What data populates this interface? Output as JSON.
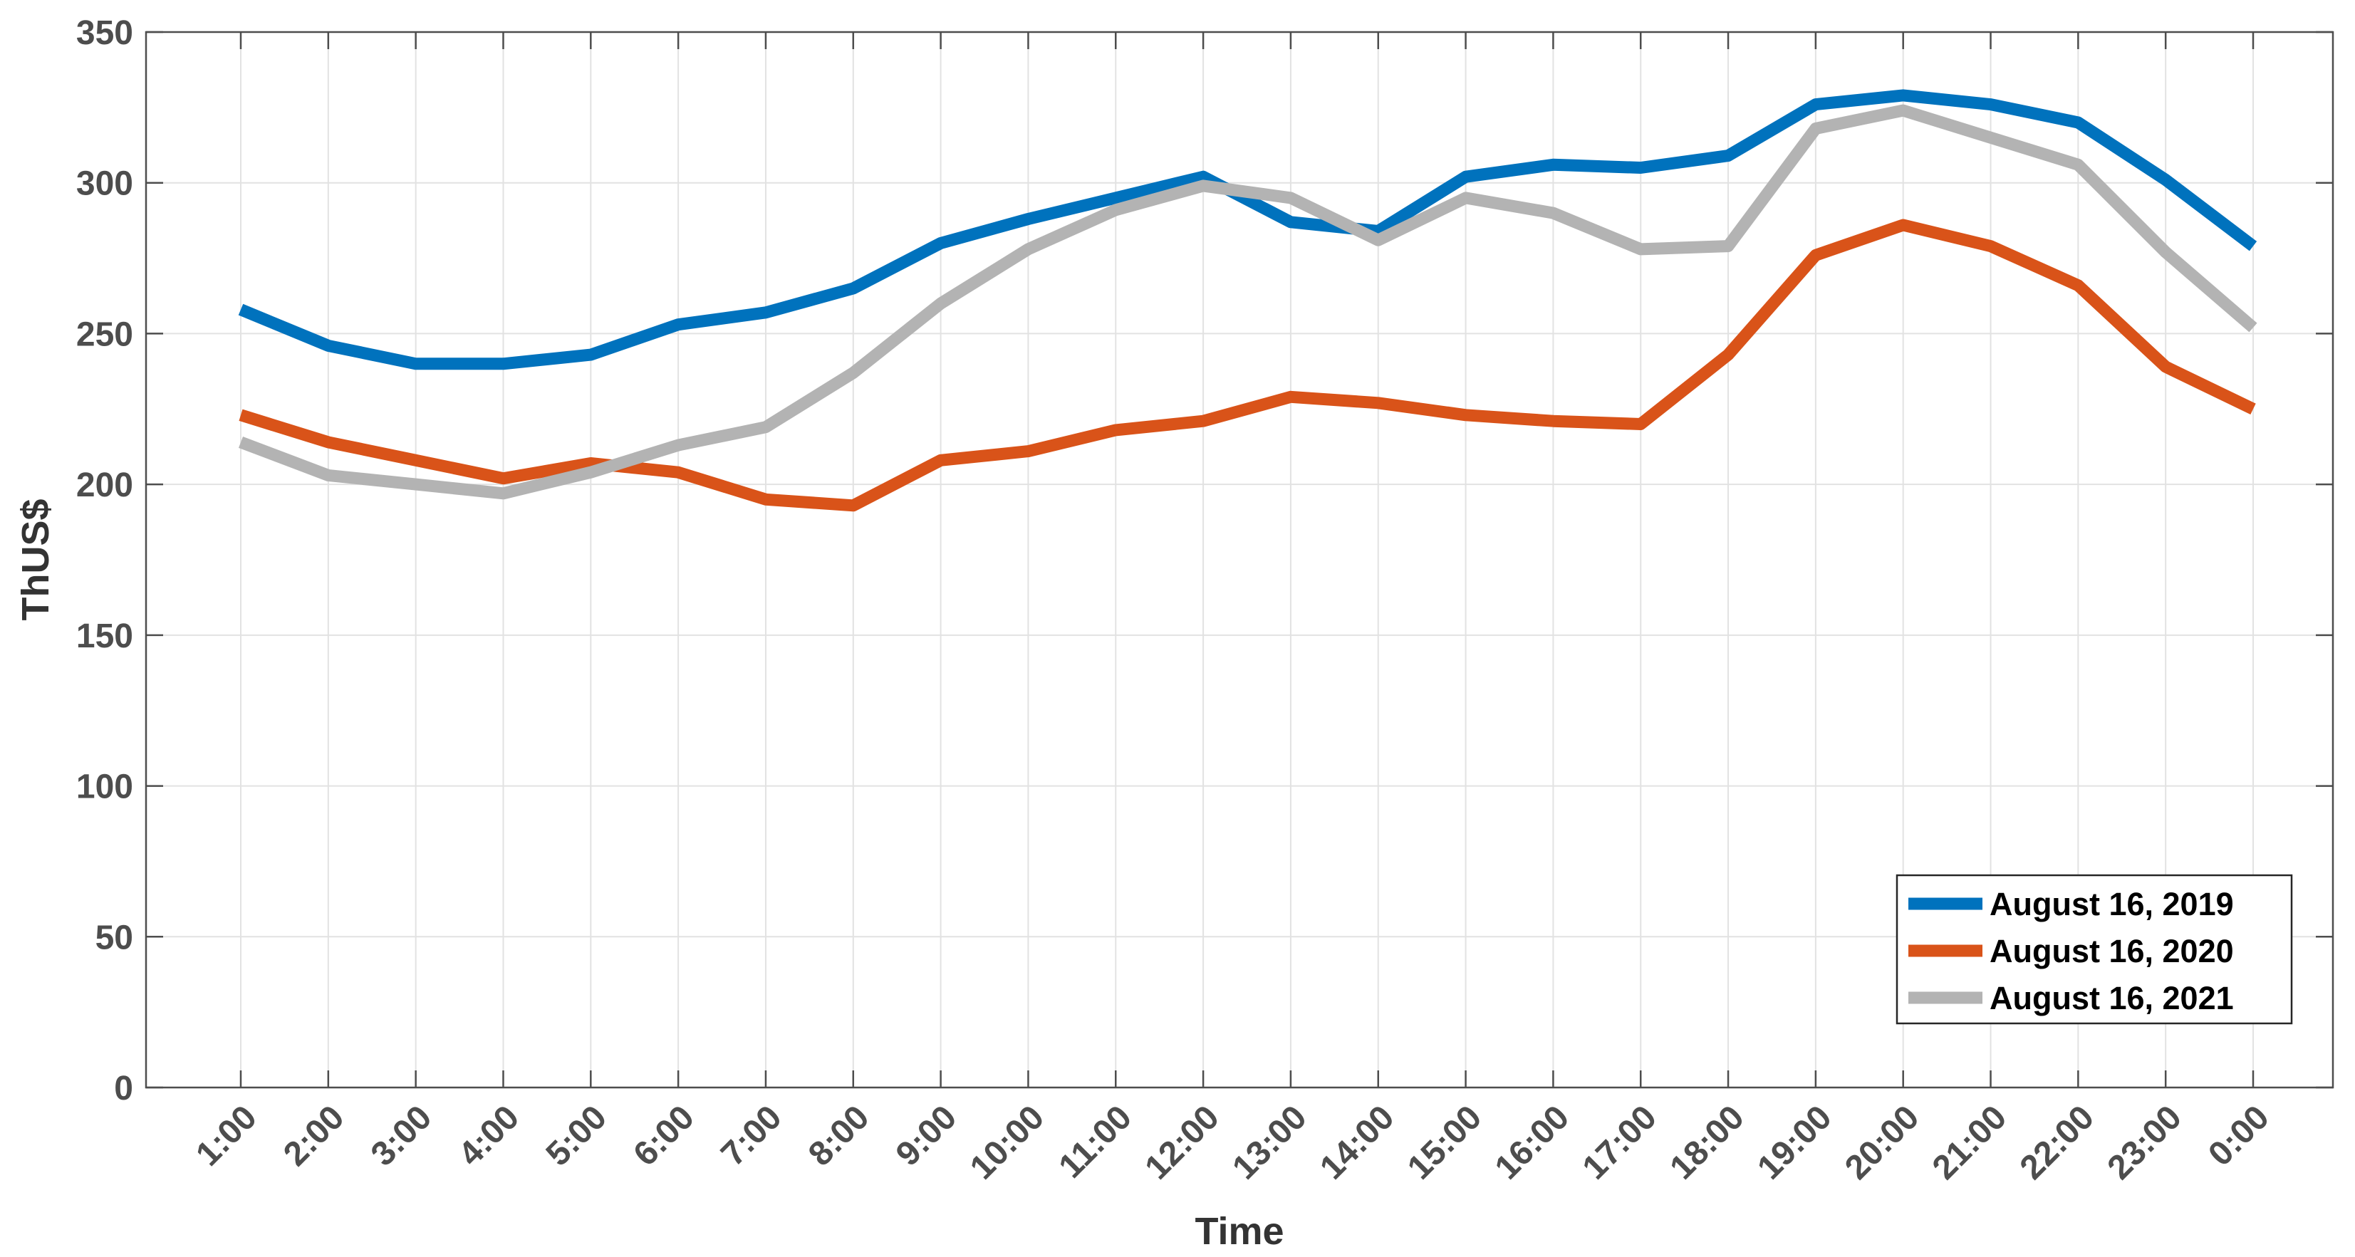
{
  "chart_data": {
    "type": "line",
    "xlabel": "Time",
    "ylabel": "ThUS$",
    "ylim": [
      0,
      350
    ],
    "yticks": [
      0,
      50,
      100,
      150,
      200,
      250,
      300,
      350
    ],
    "categories": [
      "1:00",
      "2:00",
      "3:00",
      "4:00",
      "5:00",
      "6:00",
      "7:00",
      "8:00",
      "9:00",
      "10:00",
      "11:00",
      "12:00",
      "13:00",
      "14:00",
      "15:00",
      "16:00",
      "17:00",
      "18:00",
      "19:00",
      "20:00",
      "21:00",
      "22:00",
      "23:00",
      "0:00"
    ],
    "grid": true,
    "legend_position": "bottom-right",
    "series": [
      {
        "name": "August 16, 2019",
        "color": "#0072BD",
        "values": [
          258,
          246,
          240,
          240,
          243,
          253,
          257,
          265,
          280,
          288,
          295,
          302,
          287,
          284,
          302,
          306,
          305,
          309,
          326,
          329,
          326,
          320,
          301,
          279
        ]
      },
      {
        "name": "August 16, 2020",
        "color": "#D95319",
        "values": [
          223,
          214,
          208,
          202,
          207,
          204,
          195,
          193,
          208,
          211,
          218,
          221,
          229,
          227,
          223,
          221,
          220,
          243,
          276,
          286,
          279,
          266,
          239,
          225
        ]
      },
      {
        "name": "August 16, 2021",
        "color": "#B3B3B3",
        "values": [
          214,
          203,
          200,
          197,
          204,
          213,
          219,
          237,
          260,
          278,
          291,
          299,
          295,
          281,
          295,
          290,
          278,
          279,
          318,
          324,
          315,
          306,
          277,
          252
        ]
      }
    ]
  }
}
